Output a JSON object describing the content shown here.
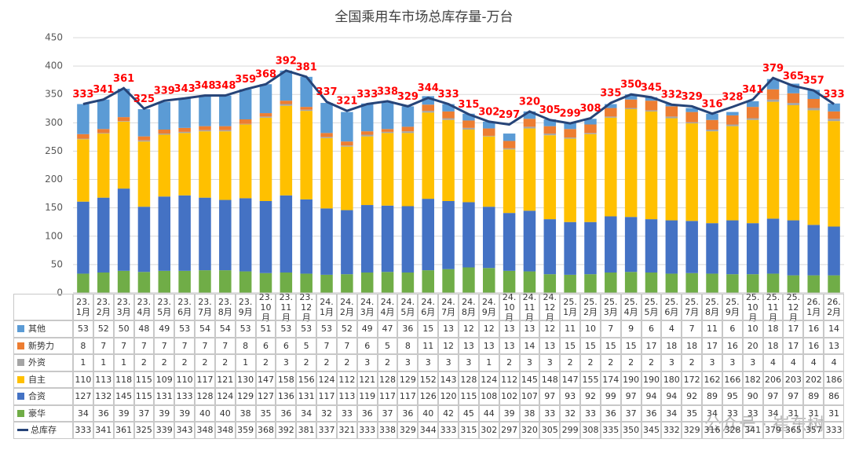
{
  "chart_data": {
    "type": "bar",
    "title": "全国乘用车市场总库存量-万台",
    "watermark": "公众号 · 崔东树",
    "categories": [
      "23.1月",
      "23.2月",
      "23.3月",
      "23.4月",
      "23.5月",
      "23.6月",
      "23.7月",
      "23.8月",
      "23.9月",
      "23.10月",
      "23.11月",
      "23.12月",
      "24.1月",
      "24.2月",
      "24.3月",
      "24.4月",
      "24.5月",
      "24.6月",
      "24.7月",
      "24.8月",
      "24.9月",
      "24.10月",
      "24.11月",
      "24.12月",
      "25.1月",
      "25.2月",
      "25.3月",
      "25.4月",
      "25.5月",
      "25.6月",
      "25.7月",
      "25.8月",
      "25.9月",
      "25.10月",
      "25.11月",
      "25.12月",
      "26.1月",
      "26.2月"
    ],
    "ylim": [
      0,
      450
    ],
    "yticks": [
      0,
      50,
      100,
      150,
      200,
      250,
      300,
      350,
      400,
      450
    ],
    "grid": true,
    "series": [
      {
        "name": "其他",
        "type": "bar",
        "color": "#5b9bd5",
        "values": [
          53,
          52,
          50,
          48,
          49,
          53,
          54,
          54,
          53,
          51,
          53,
          53,
          53,
          52,
          49,
          47,
          36,
          15,
          13,
          12,
          12,
          13,
          13,
          12,
          11,
          10,
          7,
          9,
          6,
          4,
          7,
          11,
          6,
          10,
          18,
          17,
          16,
          14
        ]
      },
      {
        "name": "新势力",
        "type": "bar",
        "color": "#ed7d31",
        "values": [
          8,
          7,
          7,
          7,
          7,
          7,
          7,
          7,
          8,
          6,
          6,
          5,
          7,
          7,
          6,
          5,
          8,
          11,
          12,
          13,
          13,
          13,
          14,
          13,
          15,
          15,
          15,
          15,
          17,
          18,
          18,
          17,
          16,
          20,
          18,
          17,
          16,
          13
        ]
      },
      {
        "name": "外资",
        "type": "bar",
        "color": "#a5a5a5",
        "values": [
          1,
          1,
          1,
          2,
          2,
          2,
          2,
          2,
          1,
          2,
          3,
          2,
          2,
          2,
          3,
          2,
          3,
          3,
          3,
          3,
          1,
          2,
          3,
          3,
          2,
          2,
          2,
          2,
          2,
          3,
          2,
          3,
          3,
          3,
          4,
          4,
          4,
          4
        ]
      },
      {
        "name": "自主",
        "type": "bar",
        "color": "#ffc000",
        "values": [
          110,
          113,
          118,
          115,
          109,
          110,
          117,
          121,
          130,
          147,
          158,
          156,
          124,
          112,
          121,
          128,
          129,
          152,
          143,
          128,
          124,
          112,
          145,
          148,
          147,
          155,
          174,
          190,
          190,
          180,
          172,
          162,
          166,
          182,
          206,
          203,
          202,
          186
        ]
      },
      {
        "name": "合资",
        "type": "bar",
        "color": "#4472c4",
        "values": [
          127,
          132,
          145,
          115,
          131,
          133,
          128,
          124,
          129,
          127,
          136,
          131,
          117,
          113,
          119,
          117,
          117,
          126,
          120,
          115,
          108,
          102,
          107,
          97,
          93,
          92,
          99,
          97,
          94,
          94,
          92,
          89,
          95,
          90,
          97,
          97,
          89,
          86
        ]
      },
      {
        "name": "豪华",
        "type": "bar",
        "color": "#70ad47",
        "values": [
          34,
          36,
          39,
          37,
          39,
          39,
          40,
          40,
          38,
          35,
          36,
          34,
          32,
          33,
          36,
          37,
          36,
          40,
          42,
          45,
          44,
          39,
          38,
          33,
          32,
          33,
          36,
          37,
          36,
          34,
          35,
          34,
          33,
          33,
          34,
          31,
          31,
          31
        ]
      },
      {
        "name": "总库存",
        "type": "line",
        "color": "#264478",
        "label_color": "#ff0000",
        "values": [
          333,
          341,
          361,
          325,
          339,
          343,
          348,
          348,
          359,
          368,
          392,
          381,
          337,
          321,
          333,
          338,
          329,
          344,
          333,
          315,
          302,
          297,
          320,
          305,
          299,
          308,
          335,
          350,
          345,
          332,
          329,
          316,
          328,
          341,
          379,
          365,
          357,
          333
        ]
      }
    ]
  }
}
